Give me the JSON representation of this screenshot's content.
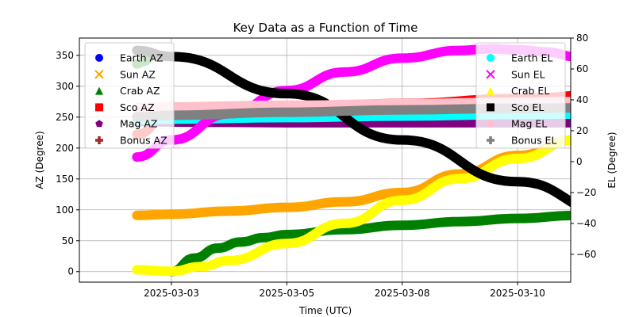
{
  "chart_data": {
    "type": "scatter",
    "title": "Key Data as a Function of Time",
    "xlabel": "Time (UTC)",
    "ylabel_left": "AZ (Degree)",
    "ylabel_right": "EL (Degree)",
    "x_ticks": [
      "2025-03-03",
      "2025-03-05",
      "2025-03-08",
      "2025-03-10"
    ],
    "y_left_ticks": [
      0,
      50,
      100,
      150,
      200,
      250,
      300,
      350
    ],
    "y_right_ticks": [
      -60,
      -40,
      -20,
      0,
      20,
      40,
      60,
      80
    ],
    "ylim_left": [
      -17,
      378
    ],
    "ylim_right": [
      -78,
      80
    ],
    "grid": true,
    "legend_left_placement": "top-left",
    "legend_right_placement": "top-right",
    "x_note": "x values are in days from the 2025-03-03 tick",
    "series_az": [
      {
        "name": "Earth AZ",
        "marker": "circle",
        "color": "#0000ff",
        "x": [
          0,
          2,
          4,
          6,
          8
        ],
        "y": [
          null,
          null,
          null,
          null,
          null
        ]
      },
      {
        "name": "Sun AZ",
        "marker": "x",
        "color": "#ffa500",
        "x": [
          -0.6,
          0,
          1,
          2,
          3,
          4,
          5,
          6,
          7,
          7.6
        ],
        "y": [
          91,
          93,
          98,
          104,
          113,
          128,
          158,
          188,
          213,
          232
        ]
      },
      {
        "name": "Crab AZ",
        "marker": "triangle",
        "color": "#008000",
        "x": [
          -0.6,
          -0.5,
          -0.3,
          0,
          0.4,
          0.8,
          1.2,
          1.6,
          2,
          3,
          4,
          5,
          6,
          7,
          7.6
        ],
        "y": [
          336,
          340,
          350,
          0,
          22,
          38,
          48,
          55,
          60,
          68,
          75,
          81,
          86,
          91,
          94
        ]
      },
      {
        "name": "Sco AZ",
        "marker": "square",
        "color": "#ff0000",
        "x": [
          -0.6,
          0,
          2,
          4,
          6,
          7.6
        ],
        "y": [
          222,
          262,
          266,
          272,
          280,
          287
        ]
      },
      {
        "name": "Mag AZ",
        "marker": "pentagon",
        "color": "#800080",
        "x": [
          -0.6,
          0,
          2,
          4,
          6,
          7.6
        ],
        "y": [
          243,
          242,
          241,
          241,
          241,
          241
        ]
      },
      {
        "name": "Bonus AZ",
        "marker": "plus",
        "color": "#a52a2a",
        "x": [
          -0.6,
          0,
          2,
          4,
          6,
          7.6
        ],
        "y": [
          null,
          null,
          null,
          null,
          null,
          null
        ]
      }
    ],
    "series_el": [
      {
        "name": "Earth EL",
        "marker": "circle",
        "color": "#00ffff",
        "x": [
          -0.6,
          0,
          2,
          4,
          6,
          7.6
        ],
        "y": [
          27,
          27.5,
          28.5,
          29.5,
          30.5,
          31
        ]
      },
      {
        "name": "Sun EL",
        "marker": "x",
        "color": "#ff00ff",
        "x": [
          -0.6,
          0,
          1,
          2,
          3,
          4,
          5,
          5.5,
          6,
          6.5,
          7,
          7.6
        ],
        "y": [
          3,
          14,
          31,
          46,
          58,
          67,
          72,
          73,
          72.5,
          71,
          68,
          58
        ]
      },
      {
        "name": "Crab EL",
        "marker": "triangle-up",
        "color": "#ffff00",
        "x": [
          -0.6,
          0,
          0.5,
          1,
          2,
          3,
          4,
          5,
          6,
          7,
          7.6
        ],
        "y": [
          -70,
          -71,
          -68,
          -64,
          -53,
          -40,
          -25,
          -11,
          2,
          14,
          20
        ]
      },
      {
        "name": "Sco EL",
        "marker": "square",
        "color": "#000000",
        "x": [
          -0.6,
          0,
          2,
          4,
          6,
          7.6
        ],
        "y": [
          72,
          68,
          44,
          14,
          -13,
          -33
        ]
      },
      {
        "name": "Mag EL",
        "marker": "pentagon",
        "color": "#ffc0cb",
        "x": [
          -0.6,
          0,
          2,
          4,
          6,
          7.6
        ],
        "y": [
          35,
          35.5,
          36.5,
          37.5,
          38.5,
          39
        ]
      },
      {
        "name": "Bonus EL",
        "marker": "plus",
        "color": "#808080",
        "x": [
          -0.6,
          0,
          2,
          4,
          6,
          7.6
        ],
        "y": [
          29,
          30,
          32,
          33.5,
          34.5,
          35
        ]
      }
    ]
  }
}
